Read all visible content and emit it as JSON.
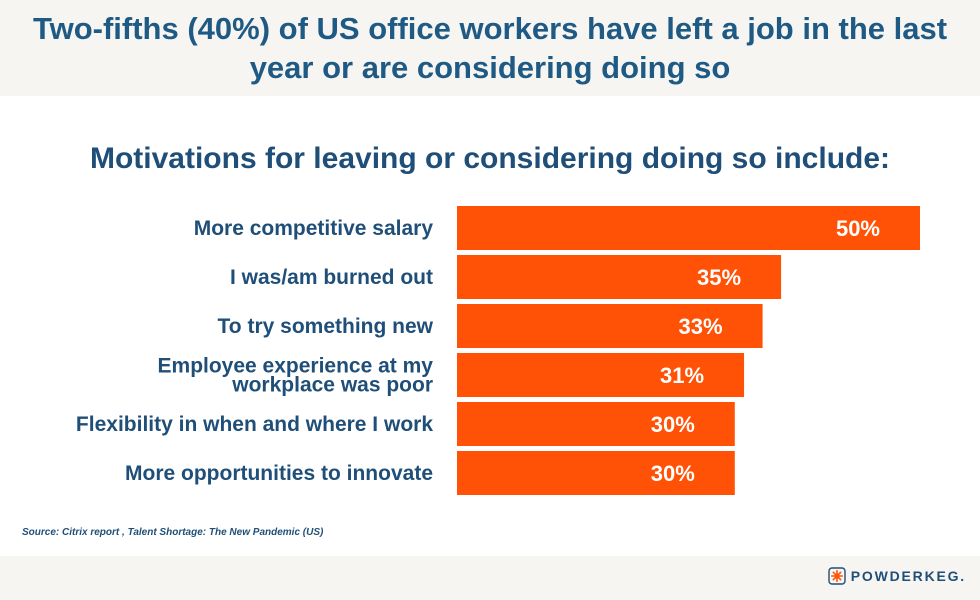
{
  "header": {
    "title": "Two-fifths (40%) of US office workers have left a job in the last year or are considering doing so"
  },
  "chart_subtitle": "Motivations for leaving or considering doing so include:",
  "chart_data": {
    "type": "bar",
    "orientation": "horizontal",
    "title": "Two-fifths (40%) of US office workers have left a job in the last year or are considering doing so",
    "subtitle": "Motivations for leaving or considering doing so include:",
    "categories": [
      [
        "More competitive salary"
      ],
      [
        "I was/am burned out"
      ],
      [
        "To try something new"
      ],
      [
        "Employee experience at my",
        "workplace was poor"
      ],
      [
        "Flexibility in when and where I work"
      ],
      [
        "More opportunities to innovate"
      ]
    ],
    "values": [
      50,
      35,
      33,
      31,
      30,
      30
    ],
    "value_labels": [
      "50%",
      "35%",
      "33%",
      "31%",
      "30%",
      "30%"
    ],
    "xlim": [
      0,
      50
    ],
    "grid": false,
    "bar_color": "#ff5206"
  },
  "footer": {
    "source": "Source: Citrix report , Talent Shortage: The New Pandemic (US)",
    "brand": "POWDERKEG.",
    "logo_icon": "starburst-icon",
    "logo_color": "#ff5206"
  }
}
